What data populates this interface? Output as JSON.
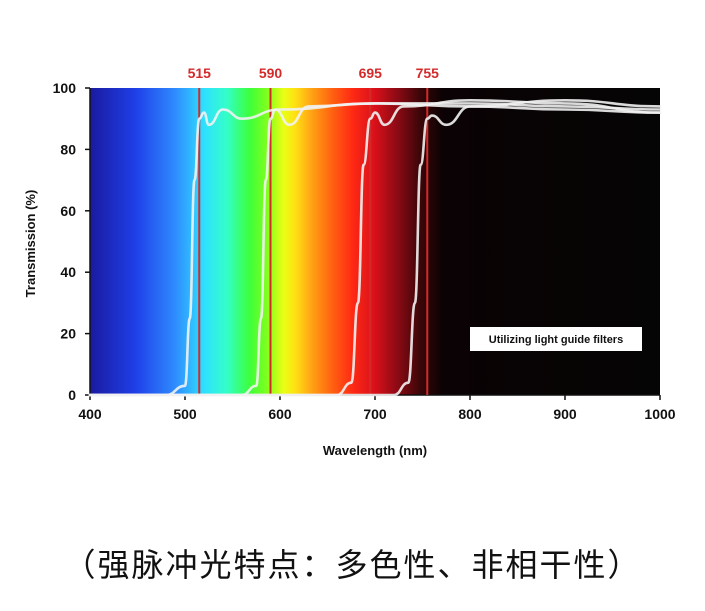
{
  "chart_data": {
    "type": "line",
    "xlabel": "Wavelength (nm)",
    "ylabel": "Transmission (%)",
    "xlim": [
      400,
      1000
    ],
    "ylim": [
      0,
      100
    ],
    "x_ticks": [
      "400",
      "500",
      "600",
      "700",
      "800",
      "900",
      "1000"
    ],
    "y_ticks": [
      "0",
      "20",
      "40",
      "60",
      "80",
      "100"
    ],
    "grid": false,
    "background": "visible-spectrum gradient (blue to red) fading to black above ~750 nm",
    "cut_on_markers": [
      "515",
      "590",
      "695",
      "755"
    ],
    "series": [
      {
        "x": [
          400,
          480,
          500,
          505,
          510,
          515,
          520,
          525,
          540,
          560,
          600,
          700,
          800,
          900,
          1000
        ],
        "values": [
          0,
          0,
          3,
          25,
          70,
          90,
          92,
          88,
          93,
          90,
          93,
          95,
          94,
          93,
          92
        ]
      },
      {
        "x": [
          400,
          560,
          575,
          580,
          585,
          590,
          595,
          610,
          630,
          700,
          800,
          900,
          1000
        ],
        "values": [
          0,
          0,
          3,
          25,
          70,
          90,
          93,
          88,
          94,
          95,
          95,
          94,
          93
        ]
      },
      {
        "x": [
          400,
          660,
          675,
          682,
          688,
          695,
          700,
          710,
          730,
          800,
          900,
          1000
        ],
        "values": [
          0,
          0,
          4,
          30,
          75,
          90,
          92,
          88,
          94,
          96,
          95,
          92
        ]
      },
      {
        "x": [
          400,
          720,
          735,
          742,
          748,
          755,
          760,
          775,
          800,
          900,
          1000
        ],
        "values": [
          0,
          0,
          4,
          30,
          75,
          90,
          91,
          88,
          94,
          96,
          94
        ]
      }
    ],
    "annotation": "Utilizing light guide filters",
    "marker_color": "#d42a2a",
    "curve_color": "#f2f2f2"
  },
  "caption": "（强脉冲光特点：多色性、非相干性）"
}
